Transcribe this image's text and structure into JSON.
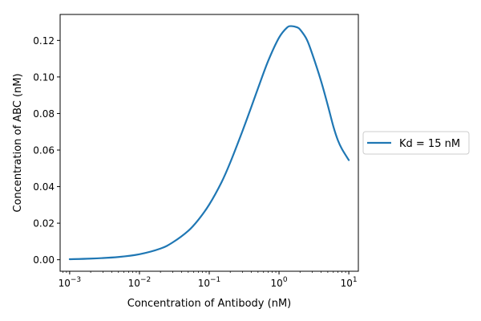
{
  "chart_data": {
    "type": "line",
    "title": "",
    "xlabel": "Concentration of Antibody (nM)",
    "ylabel": "Concentration of ABC (nM)",
    "xscale": "log",
    "xlim": [
      0.00073,
      13.7
    ],
    "ylim": [
      -0.0063,
      0.1342
    ],
    "x_ticks": [
      0.001,
      0.01,
      0.1,
      1,
      10
    ],
    "x_tick_labels": [
      {
        "base": "10",
        "exp": "−3"
      },
      {
        "base": "10",
        "exp": "−2"
      },
      {
        "base": "10",
        "exp": "−1"
      },
      {
        "base": "10",
        "exp": "0"
      },
      {
        "base": "10",
        "exp": "1"
      }
    ],
    "y_ticks": [
      0.0,
      0.02,
      0.04,
      0.06,
      0.08,
      0.1,
      0.12
    ],
    "y_tick_labels": [
      "0.00",
      "0.02",
      "0.04",
      "0.06",
      "0.08",
      "0.10",
      "0.12"
    ],
    "grid": false,
    "legend_position": "outside-right",
    "series": [
      {
        "name": "Kd = 15 nM",
        "color": "#1f77b4",
        "x": [
          0.001,
          0.002,
          0.005,
          0.01,
          0.02,
          0.03,
          0.05,
          0.07,
          0.1,
          0.15,
          0.2,
          0.3,
          0.4,
          0.5,
          0.7,
          1.0,
          1.3,
          1.5,
          1.8,
          2.0,
          2.5,
          3.0,
          4.0,
          5.0,
          6.0,
          7.0,
          8.0,
          10.0
        ],
        "y": [
          0.0003,
          0.0006,
          0.0015,
          0.003,
          0.0061,
          0.0095,
          0.0158,
          0.0219,
          0.0302,
          0.0424,
          0.0532,
          0.0705,
          0.0835,
          0.0938,
          0.1088,
          0.1215,
          0.127,
          0.1278,
          0.1272,
          0.126,
          0.1205,
          0.1125,
          0.0978,
          0.0845,
          0.073,
          0.0652,
          0.0605,
          0.0545
        ]
      }
    ]
  }
}
